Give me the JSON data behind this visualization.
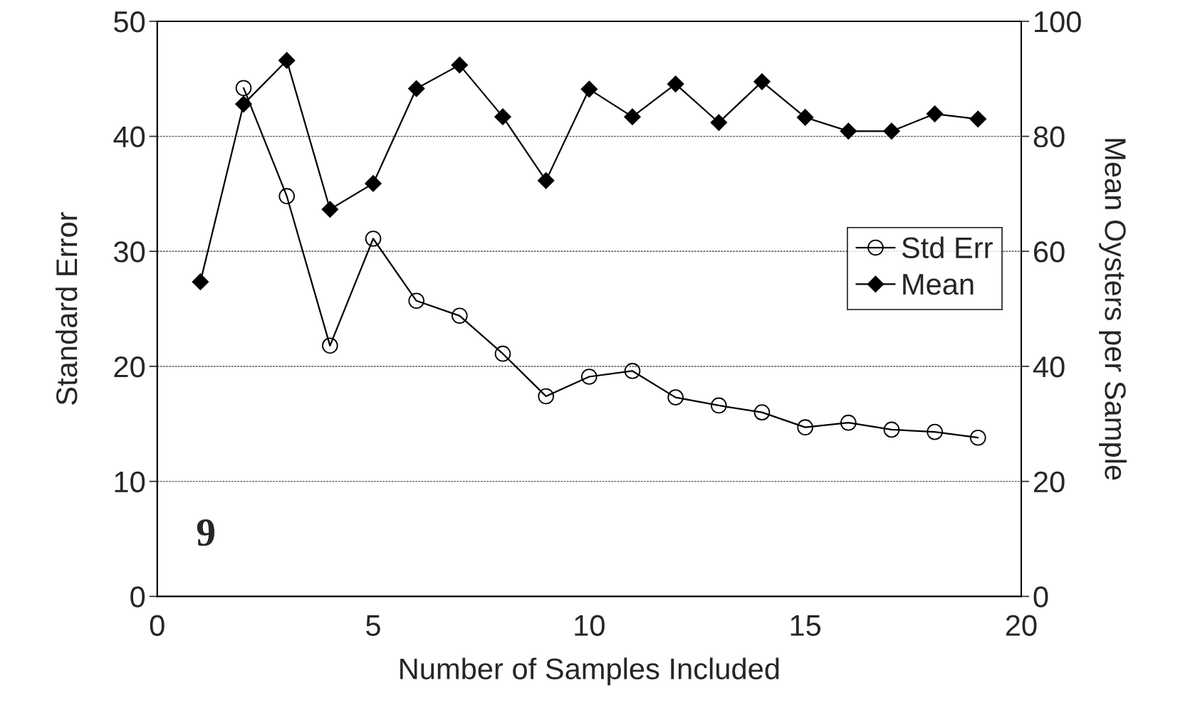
{
  "chart_data": {
    "type": "line",
    "xlabel": "Number of Samples Included",
    "ylabel": "Standard Error",
    "y2label": "Mean Oysters per Sample",
    "xlim": [
      0,
      20
    ],
    "xticks": [
      0,
      5,
      10,
      15,
      20
    ],
    "ylim": [
      0,
      50
    ],
    "yticks": [
      0,
      10,
      20,
      30,
      40,
      50
    ],
    "y2lim": [
      0,
      100
    ],
    "y2ticks": [
      0,
      20,
      40,
      60,
      80,
      100
    ],
    "grid": "y",
    "legend": "right",
    "annotations": [
      "9"
    ],
    "series": [
      {
        "name": "Std Err",
        "color": "#000000",
        "marker": "circle",
        "x": [
          2,
          3,
          4,
          5,
          6,
          7,
          8,
          9,
          10,
          11,
          12,
          13,
          14,
          15,
          16,
          17,
          18,
          19
        ],
        "values": [
          44.2,
          34.8,
          21.8,
          31.1,
          25.7,
          24.4,
          21.1,
          17.4,
          19.1,
          19.6,
          17.3,
          16.6,
          16.0,
          14.7,
          15.1,
          14.5,
          14.3,
          13.8
        ]
      },
      {
        "name": "Mean",
        "color": "#000000",
        "marker": "diamond",
        "axis": "y2",
        "x": [
          1,
          2,
          3,
          4,
          5,
          6,
          7,
          8,
          9,
          10,
          11,
          12,
          13,
          14,
          15,
          16,
          17,
          18,
          19
        ],
        "values": [
          54.7,
          85.6,
          93.2,
          67.3,
          71.8,
          88.3,
          92.4,
          83.4,
          72.3,
          88.2,
          83.4,
          89.1,
          82.4,
          89.5,
          83.3,
          80.9,
          80.9,
          83.9,
          83.0
        ]
      }
    ]
  }
}
